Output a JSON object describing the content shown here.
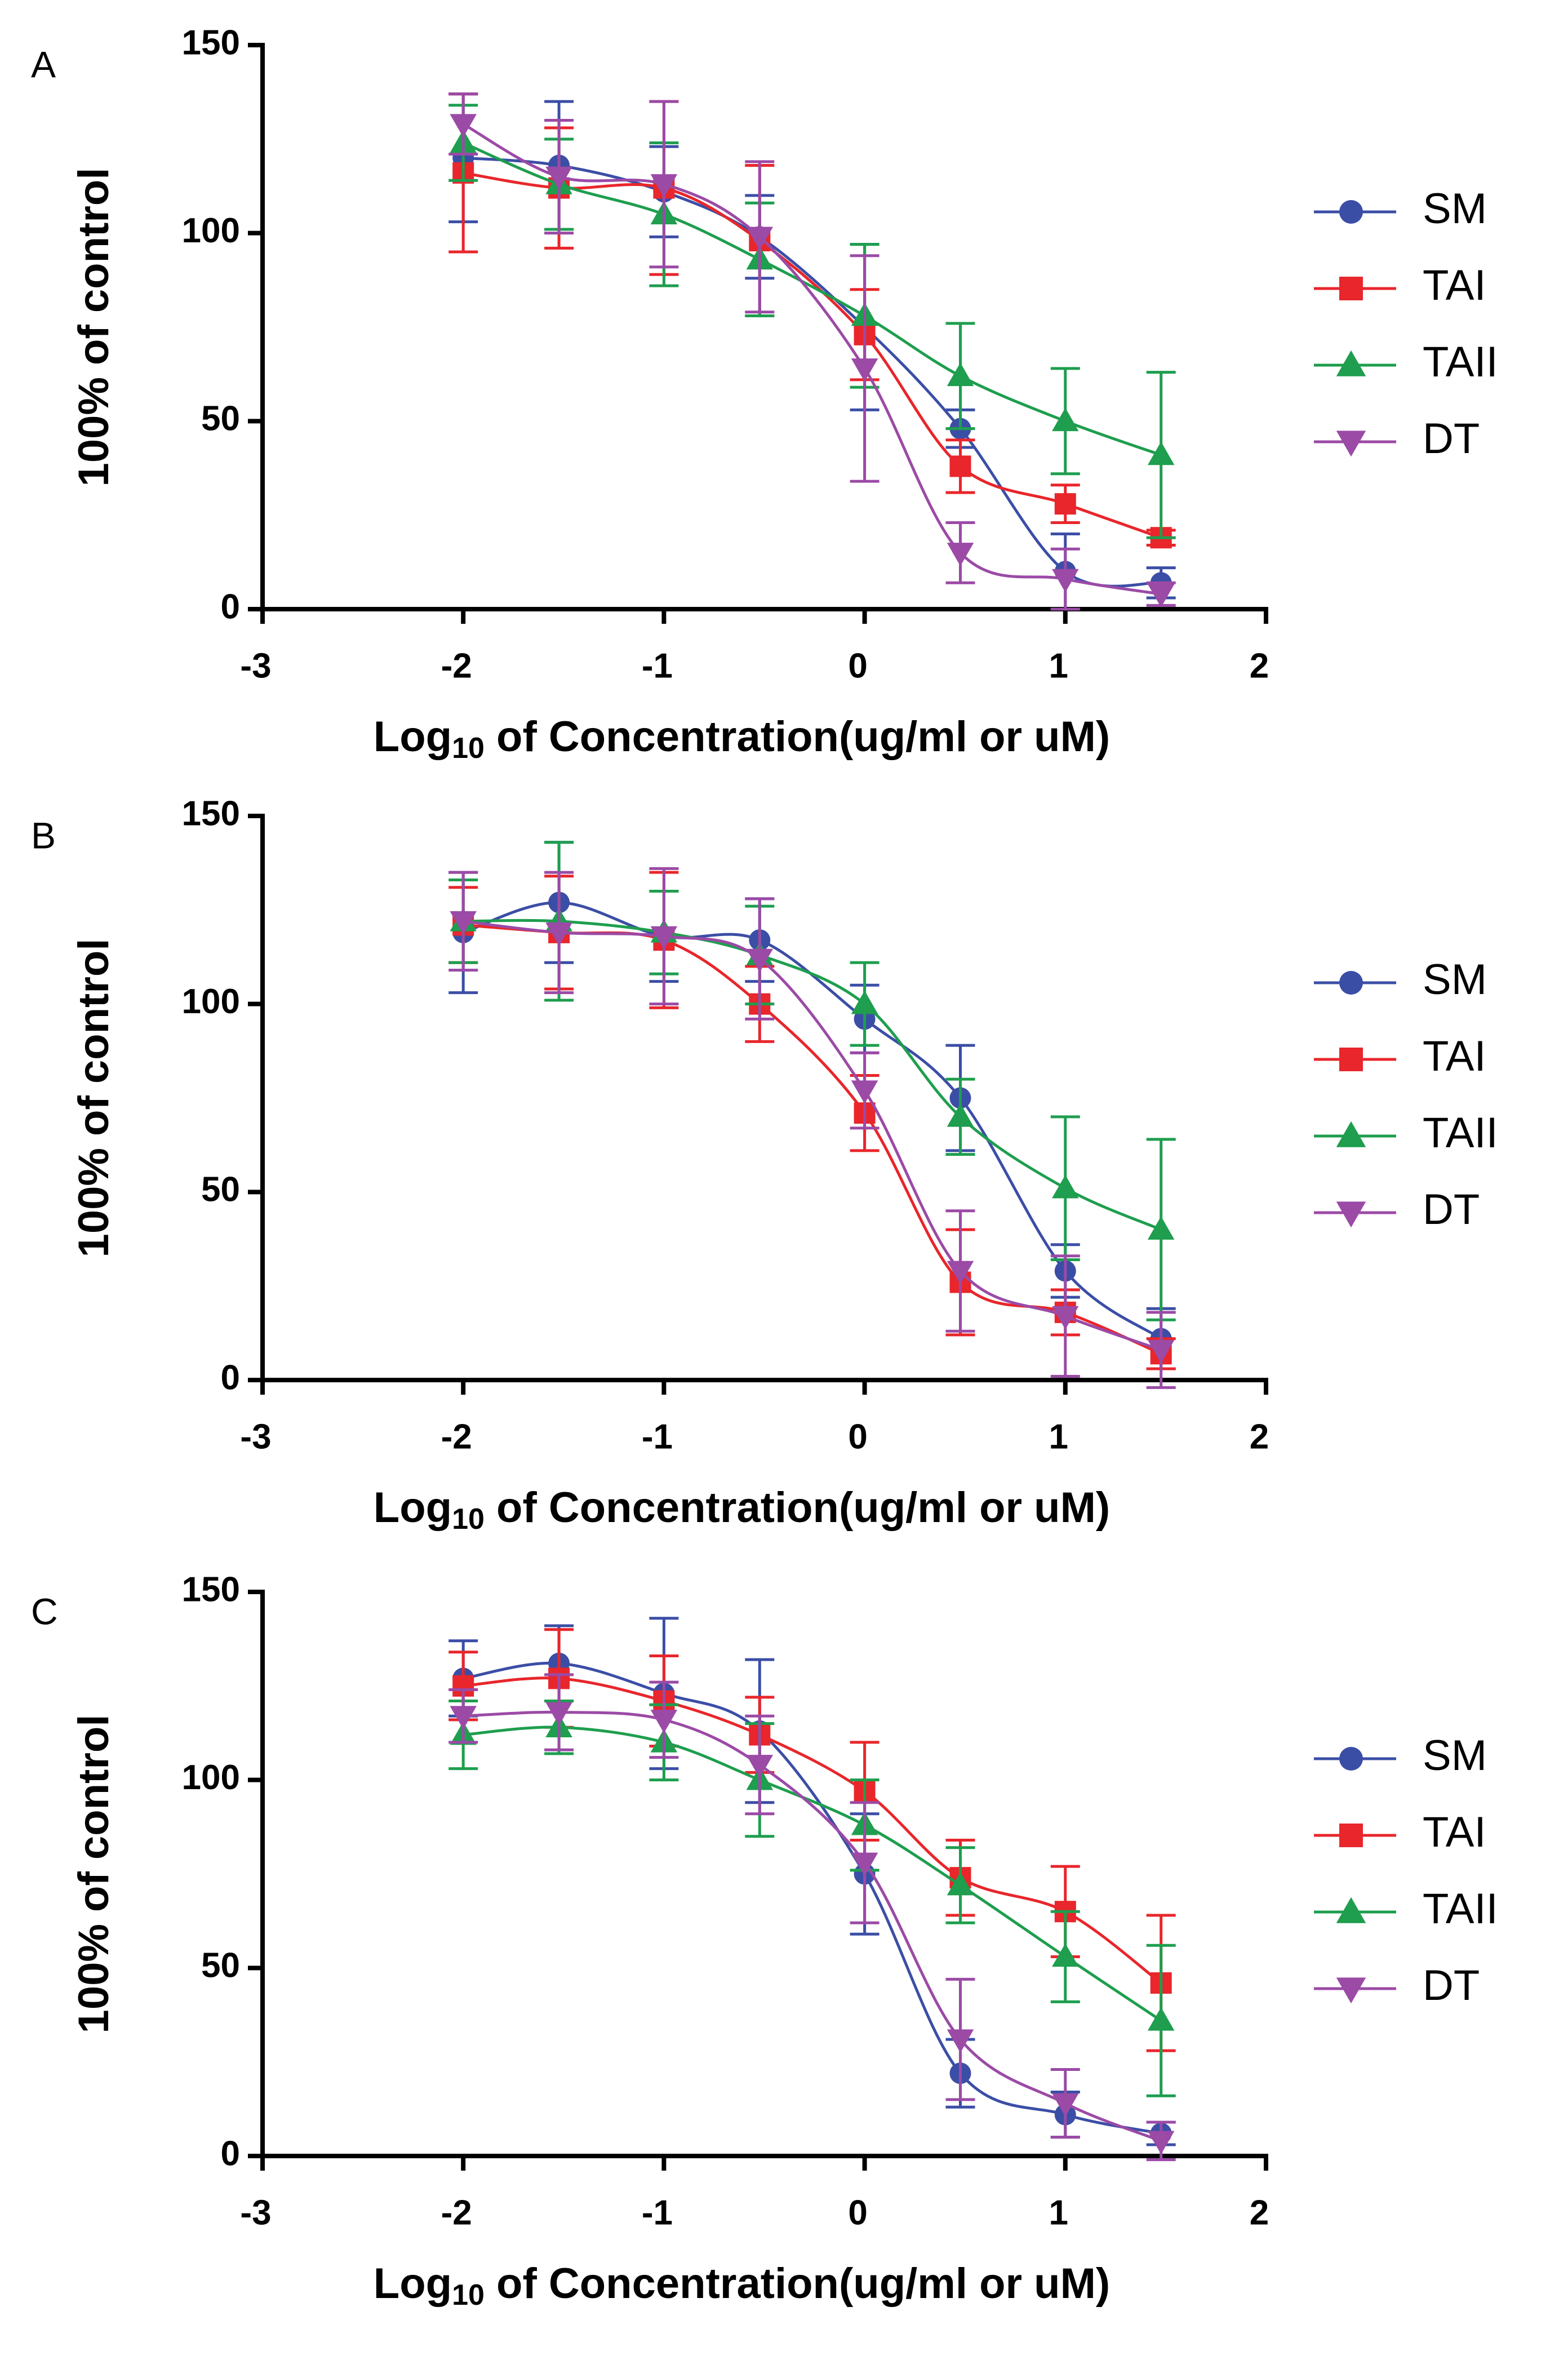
{
  "chart_data": [
    {
      "type": "scatter",
      "panel_label": "A",
      "ylabel": "100% of control",
      "xlabel": {
        "base": "Log",
        "subscript": "10",
        "rest": " of Concentration(ug/ml or uM)"
      },
      "xlim": [
        -3,
        2
      ],
      "ylim": [
        0,
        150
      ],
      "xticks": [
        -3,
        -2,
        -1,
        0,
        1,
        2
      ],
      "yticks": [
        0,
        50,
        100,
        150
      ],
      "x": [
        -2,
        -1.523,
        -1,
        -0.523,
        0,
        0.477,
        1,
        1.477
      ],
      "series": [
        {
          "name": "SM",
          "color": "#3b4ea6",
          "marker": "circle",
          "values": [
            120,
            118,
            111,
            99,
            75,
            48,
            10,
            7
          ],
          "errors": [
            17,
            17,
            12,
            11,
            22,
            5,
            10,
            4
          ]
        },
        {
          "name": "TAI",
          "color": "#e8262b",
          "marker": "square",
          "values": [
            116,
            112,
            112,
            98,
            73,
            38,
            28,
            19
          ],
          "errors": [
            21,
            16,
            23,
            20,
            12,
            7,
            5,
            2
          ]
        },
        {
          "name": "TAII",
          "color": "#1e9e4e",
          "marker": "triangle-up",
          "values": [
            124,
            113,
            105,
            93,
            78,
            62,
            50,
            41
          ],
          "errors": [
            10,
            12,
            19,
            15,
            19,
            14,
            14,
            22
          ]
        },
        {
          "name": "DT",
          "color": "#9b4aa6",
          "marker": "triangle-down",
          "values": [
            129,
            115,
            113,
            99,
            64,
            15,
            8,
            4
          ],
          "errors": [
            8,
            15,
            22,
            20,
            30,
            8,
            8,
            3
          ]
        }
      ]
    },
    {
      "type": "scatter",
      "panel_label": "B",
      "ylabel": "100% of control",
      "xlabel": {
        "base": "Log",
        "subscript": "10",
        "rest": " of Concentration(ug/ml or uM)"
      },
      "xlim": [
        -3,
        2
      ],
      "ylim": [
        0,
        150
      ],
      "xticks": [
        -3,
        -2,
        -1,
        0,
        1,
        2
      ],
      "yticks": [
        0,
        50,
        100,
        150
      ],
      "x": [
        -2,
        -1.523,
        -1,
        -0.523,
        0,
        0.477,
        1,
        1.477
      ],
      "series": [
        {
          "name": "SM",
          "color": "#3b4ea6",
          "marker": "circle",
          "values": [
            119,
            127,
            118,
            117,
            96,
            75,
            29,
            11
          ],
          "errors": [
            16,
            16,
            12,
            11,
            9,
            14,
            7,
            8
          ]
        },
        {
          "name": "TAI",
          "color": "#e8262b",
          "marker": "square",
          "values": [
            121,
            119,
            117,
            100,
            71,
            26,
            18,
            7
          ],
          "errors": [
            10,
            15,
            18,
            10,
            10,
            14,
            6,
            4
          ]
        },
        {
          "name": "TAII",
          "color": "#1e9e4e",
          "marker": "triangle-up",
          "values": [
            122,
            122,
            119,
            113,
            100,
            70,
            51,
            40
          ],
          "errors": [
            11,
            21,
            11,
            13,
            11,
            10,
            19,
            24
          ]
        },
        {
          "name": "DT",
          "color": "#9b4aa6",
          "marker": "triangle-down",
          "values": [
            122,
            119,
            118,
            112,
            77,
            29,
            17,
            8
          ],
          "errors": [
            13,
            16,
            18,
            16,
            10,
            16,
            16,
            10
          ]
        }
      ]
    },
    {
      "type": "scatter",
      "panel_label": "C",
      "ylabel": "100% of control",
      "xlabel": {
        "base": "Log",
        "subscript": "10",
        "rest": " of Concentration(ug/ml or uM)"
      },
      "xlim": [
        -3,
        2
      ],
      "ylim": [
        0,
        150
      ],
      "xticks": [
        -3,
        -2,
        -1,
        0,
        1,
        2
      ],
      "yticks": [
        0,
        50,
        100,
        150
      ],
      "x": [
        -2,
        -1.523,
        -1,
        -0.523,
        0,
        0.477,
        1,
        1.477
      ],
      "series": [
        {
          "name": "SM",
          "color": "#3b4ea6",
          "marker": "circle",
          "values": [
            127,
            131,
            123,
            113,
            75,
            22,
            11,
            6
          ],
          "errors": [
            10,
            10,
            20,
            19,
            16,
            9,
            6,
            3
          ]
        },
        {
          "name": "TAI",
          "color": "#e8262b",
          "marker": "square",
          "values": [
            125,
            127,
            121,
            112,
            97,
            74,
            65,
            46
          ],
          "errors": [
            9,
            13,
            12,
            10,
            13,
            10,
            12,
            18
          ]
        },
        {
          "name": "TAII",
          "color": "#1e9e4e",
          "marker": "triangle-up",
          "values": [
            112,
            114,
            110,
            100,
            88,
            72,
            53,
            36
          ],
          "errors": [
            9,
            7,
            10,
            15,
            12,
            10,
            12,
            20
          ]
        },
        {
          "name": "DT",
          "color": "#9b4aa6",
          "marker": "triangle-down",
          "values": [
            117,
            118,
            116,
            104,
            78,
            31,
            14,
            4
          ],
          "errors": [
            7,
            10,
            10,
            13,
            16,
            16,
            9,
            5
          ]
        }
      ]
    }
  ]
}
